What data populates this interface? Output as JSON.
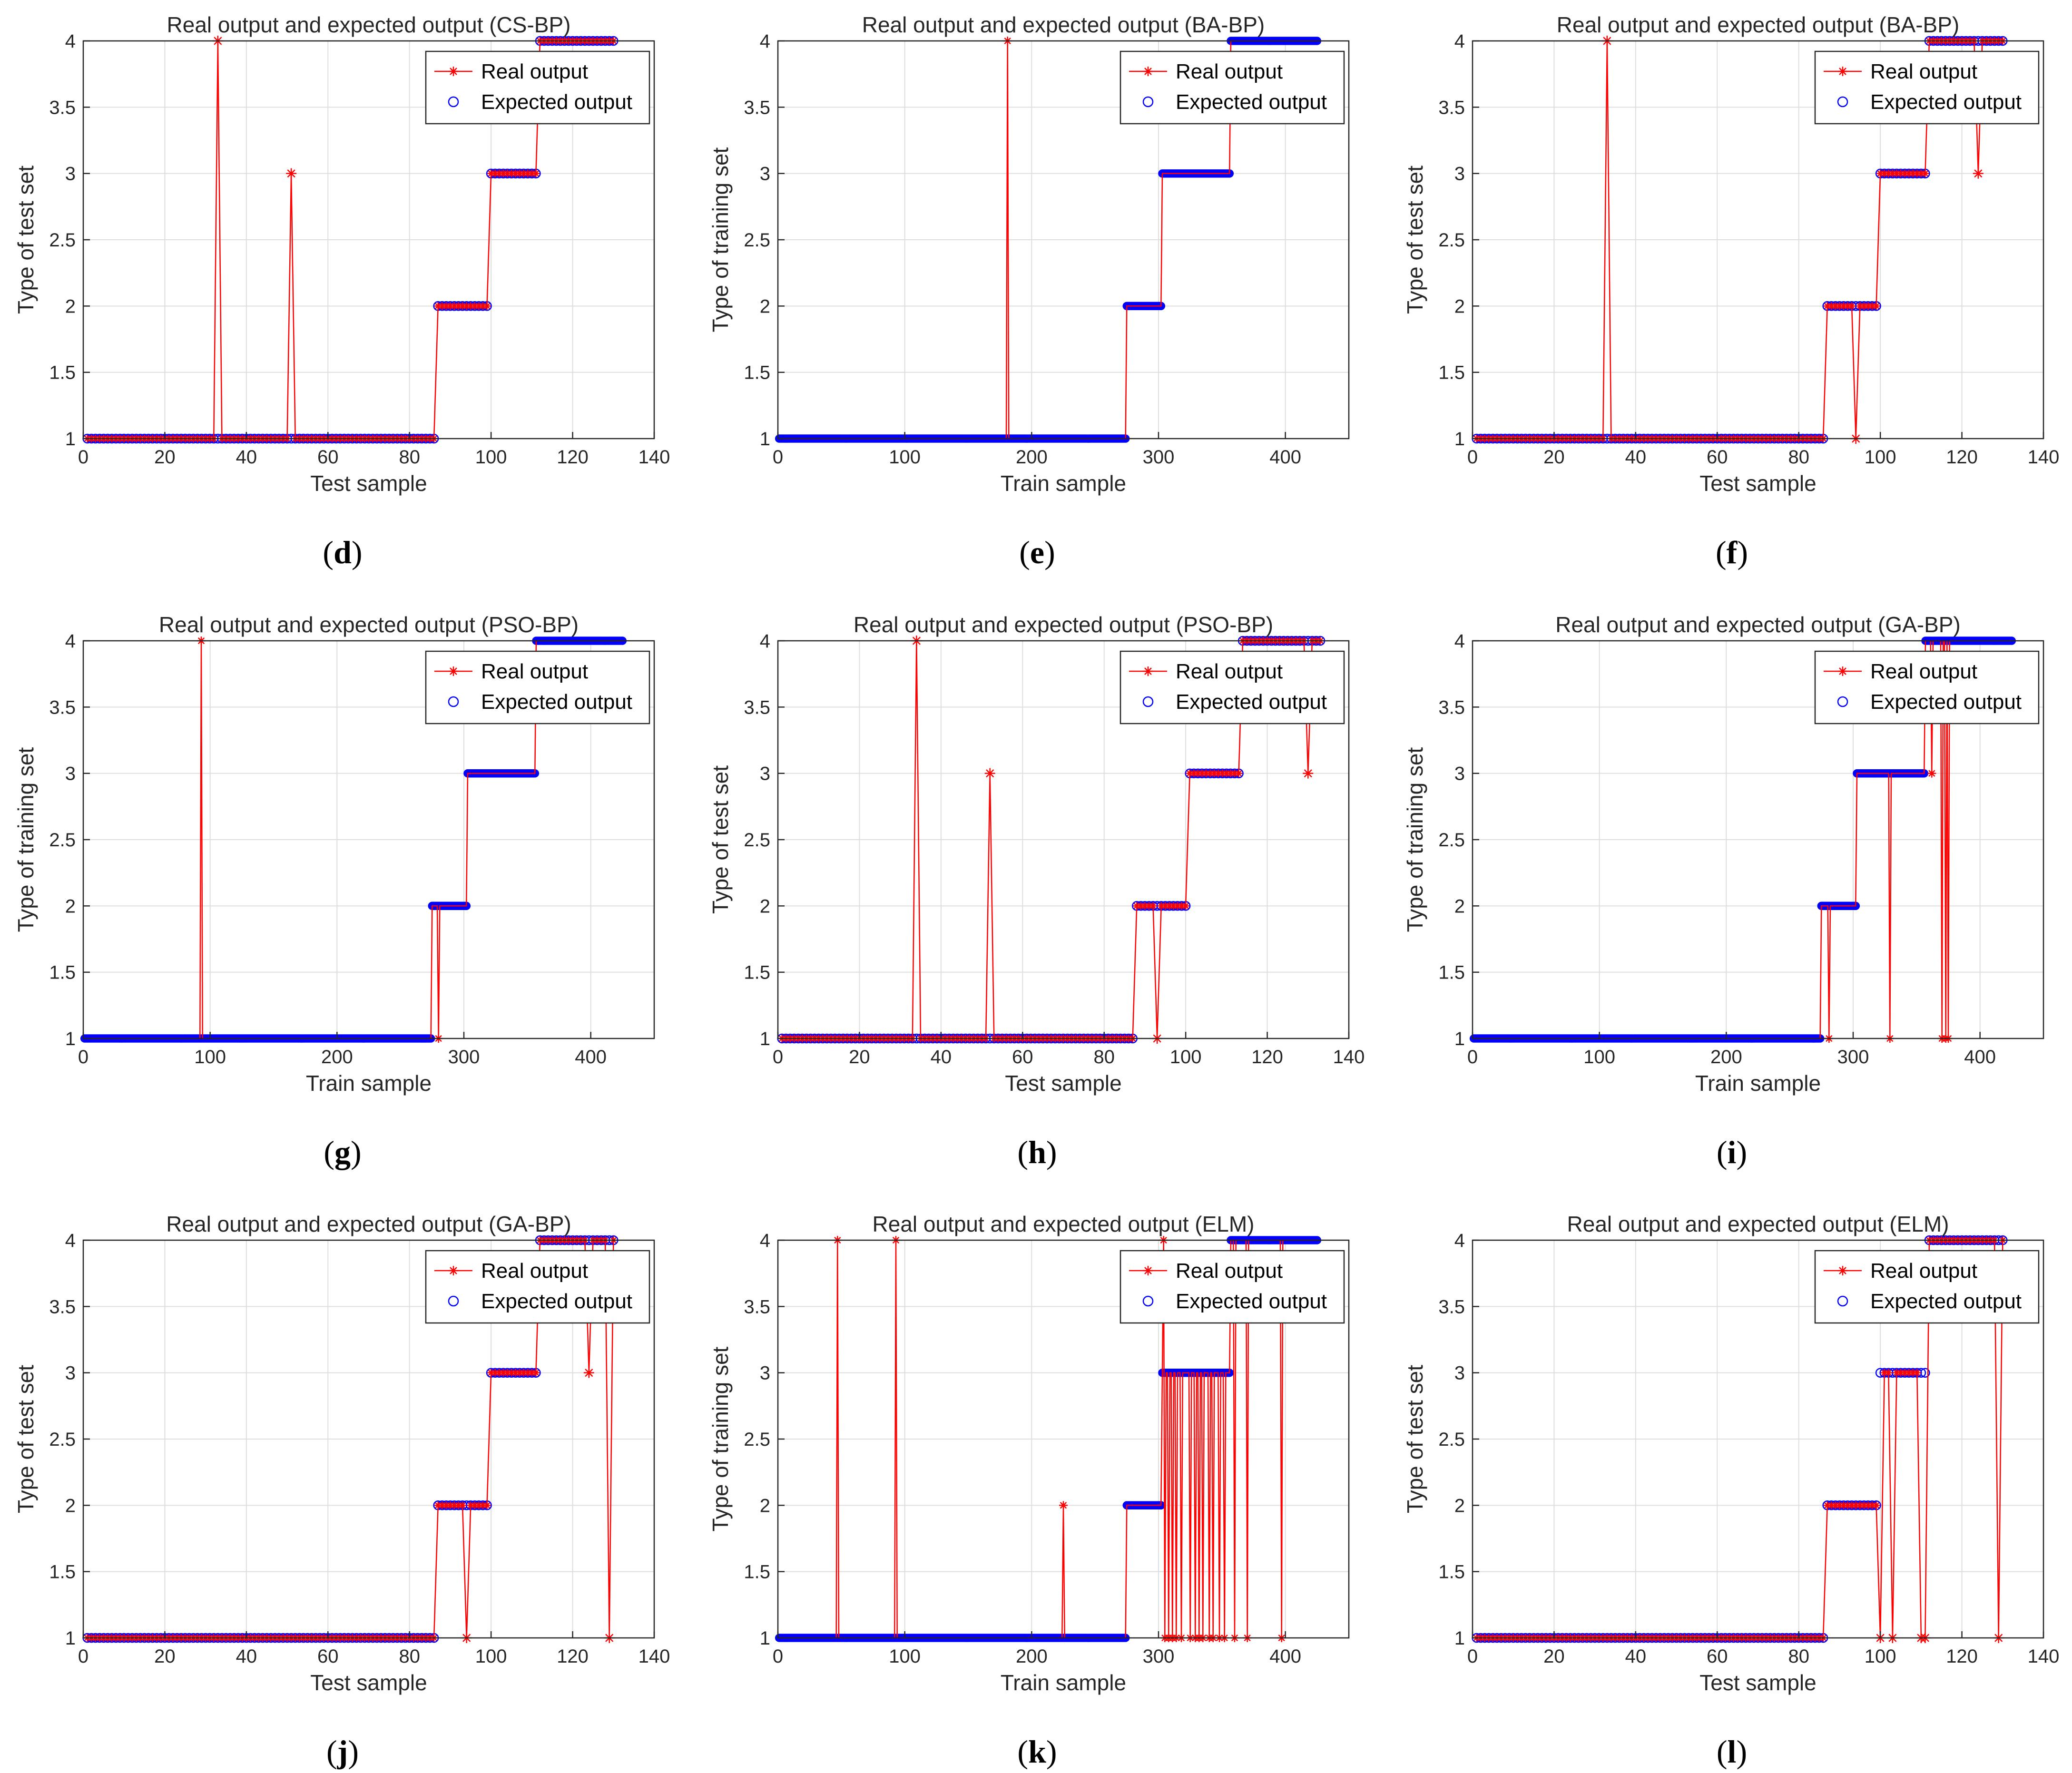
{
  "colors": {
    "real": "#ff0000",
    "expected": "#0000ff",
    "grid": "#dedede",
    "axis": "#262626"
  },
  "legend": {
    "real": "Real output",
    "expected": "Expected output"
  },
  "chart_data": [
    {
      "id": "d",
      "caption": "(d)",
      "type": "line",
      "title": "Real output and expected output (CS-BP)",
      "xlabel": "Test sample",
      "ylabel": "Type of test set",
      "xlim": [
        0,
        140
      ],
      "xticks": [
        0,
        20,
        40,
        60,
        80,
        100,
        120,
        140
      ],
      "ylim": [
        1,
        4
      ],
      "yticks": [
        "1",
        "1.5",
        "2",
        "2.5",
        "3",
        "3.5",
        "4"
      ],
      "legend_position": "top-right",
      "n": 130,
      "segments": [
        [
          1,
          86,
          1
        ],
        [
          87,
          99,
          2
        ],
        [
          100,
          111,
          3
        ],
        [
          112,
          130,
          4
        ]
      ],
      "errors": [
        [
          33,
          4
        ],
        [
          51,
          3
        ]
      ]
    },
    {
      "id": "e",
      "caption": "(e)",
      "type": "line",
      "title": "Real output and expected output (BA-BP)",
      "xlabel": "Train sample",
      "ylabel": "Type of training set",
      "xlim": [
        0,
        450
      ],
      "xticks": [
        0,
        100,
        200,
        300,
        400
      ],
      "ylim": [
        1,
        4
      ],
      "yticks": [
        "1",
        "1.5",
        "2",
        "2.5",
        "3",
        "3.5",
        "4"
      ],
      "legend_position": "top-right",
      "n": 425,
      "segments": [
        [
          1,
          274,
          1
        ],
        [
          275,
          302,
          2
        ],
        [
          303,
          356,
          3
        ],
        [
          357,
          425,
          4
        ]
      ],
      "errors": [
        [
          181,
          4
        ]
      ]
    },
    {
      "id": "f",
      "caption": "(f)",
      "type": "line",
      "title": "Real output and expected output (BA-BP)",
      "xlabel": "Test sample",
      "ylabel": "Type of test set",
      "xlim": [
        0,
        140
      ],
      "xticks": [
        0,
        20,
        40,
        60,
        80,
        100,
        120,
        140
      ],
      "ylim": [
        1,
        4
      ],
      "yticks": [
        "1",
        "1.5",
        "2",
        "2.5",
        "3",
        "3.5",
        "4"
      ],
      "legend_position": "top-right",
      "n": 130,
      "segments": [
        [
          1,
          86,
          1
        ],
        [
          87,
          99,
          2
        ],
        [
          100,
          111,
          3
        ],
        [
          112,
          130,
          4
        ]
      ],
      "errors": [
        [
          33,
          4
        ],
        [
          94,
          1
        ],
        [
          124,
          3
        ]
      ]
    },
    {
      "id": "g",
      "caption": "(g)",
      "type": "line",
      "title": "Real output and expected output (PSO-BP)",
      "xlabel": "Train sample",
      "ylabel": "Type of training set",
      "xlim": [
        0,
        450
      ],
      "xticks": [
        0,
        100,
        200,
        300,
        400
      ],
      "ylim": [
        1,
        4
      ],
      "yticks": [
        "1",
        "1.5",
        "2",
        "2.5",
        "3",
        "3.5",
        "4"
      ],
      "legend_position": "top-right",
      "n": 425,
      "segments": [
        [
          1,
          274,
          1
        ],
        [
          275,
          302,
          2
        ],
        [
          303,
          356,
          3
        ],
        [
          357,
          425,
          4
        ]
      ],
      "errors": [
        [
          93,
          4
        ],
        [
          280,
          1
        ]
      ]
    },
    {
      "id": "h",
      "caption": "(h)",
      "type": "line",
      "title": "Real output and expected output (PSO-BP)",
      "xlabel": "Test sample",
      "ylabel": "Type of test set",
      "xlim": [
        0,
        140
      ],
      "xticks": [
        0,
        20,
        40,
        60,
        80,
        100,
        120,
        140
      ],
      "ylim": [
        1,
        4
      ],
      "yticks": [
        "1",
        "1.5",
        "2",
        "2.5",
        "3",
        "3.5",
        "4"
      ],
      "legend_position": "top-right",
      "n": 133,
      "segments": [
        [
          1,
          87,
          1
        ],
        [
          88,
          100,
          2
        ],
        [
          101,
          113,
          3
        ],
        [
          114,
          133,
          4
        ]
      ],
      "errors": [
        [
          34,
          4
        ],
        [
          52,
          3
        ],
        [
          93,
          1
        ],
        [
          130,
          3
        ]
      ]
    },
    {
      "id": "i",
      "caption": "(i)",
      "type": "line",
      "title": "Real output and expected output (GA-BP)",
      "xlabel": "Train sample",
      "ylabel": "Type of training set",
      "xlim": [
        0,
        450
      ],
      "xticks": [
        0,
        100,
        200,
        300,
        400
      ],
      "ylim": [
        1,
        4
      ],
      "yticks": [
        "1",
        "1.5",
        "2",
        "2.5",
        "3",
        "3.5",
        "4"
      ],
      "legend_position": "top-right",
      "n": 425,
      "segments": [
        [
          1,
          274,
          1
        ],
        [
          275,
          302,
          2
        ],
        [
          303,
          356,
          3
        ],
        [
          357,
          425,
          4
        ]
      ],
      "errors": [
        [
          281,
          1
        ],
        [
          329,
          1
        ],
        [
          362,
          3
        ],
        [
          370,
          1
        ],
        [
          373,
          1
        ],
        [
          375,
          1
        ]
      ]
    },
    {
      "id": "j",
      "caption": "(j)",
      "type": "line",
      "title": "Real output and expected output (GA-BP)",
      "xlabel": "Test sample",
      "ylabel": "Type of test set",
      "xlim": [
        0,
        140
      ],
      "xticks": [
        0,
        20,
        40,
        60,
        80,
        100,
        120,
        140
      ],
      "ylim": [
        1,
        4
      ],
      "yticks": [
        "1",
        "1.5",
        "2",
        "2.5",
        "3",
        "3.5",
        "4"
      ],
      "legend_position": "top-right",
      "n": 130,
      "segments": [
        [
          1,
          86,
          1
        ],
        [
          87,
          99,
          2
        ],
        [
          100,
          111,
          3
        ],
        [
          112,
          130,
          4
        ]
      ],
      "errors": [
        [
          94,
          1
        ],
        [
          124,
          3
        ],
        [
          129,
          1
        ]
      ]
    },
    {
      "id": "k",
      "caption": "(k)",
      "type": "line",
      "title": "Real output and expected output (ELM)",
      "xlabel": "Train sample",
      "ylabel": "Type of training set",
      "xlim": [
        0,
        450
      ],
      "xticks": [
        0,
        100,
        200,
        300,
        400
      ],
      "ylim": [
        1,
        4
      ],
      "yticks": [
        "1",
        "1.5",
        "2",
        "2.5",
        "3",
        "3.5",
        "4"
      ],
      "legend_position": "top-right",
      "n": 425,
      "segments": [
        [
          1,
          274,
          1
        ],
        [
          275,
          302,
          2
        ],
        [
          303,
          356,
          3
        ],
        [
          357,
          425,
          4
        ]
      ],
      "errors": [
        [
          47,
          4
        ],
        [
          93,
          4
        ],
        [
          225,
          2
        ],
        [
          304,
          4
        ],
        [
          305,
          1
        ],
        [
          308,
          1
        ],
        [
          311,
          1
        ],
        [
          314,
          1
        ],
        [
          318,
          1
        ],
        [
          325,
          1
        ],
        [
          329,
          1
        ],
        [
          332,
          1
        ],
        [
          335,
          1
        ],
        [
          340,
          1
        ],
        [
          343,
          1
        ],
        [
          348,
          1
        ],
        [
          352,
          1
        ],
        [
          360,
          1
        ],
        [
          370,
          1
        ],
        [
          397,
          1
        ]
      ]
    },
    {
      "id": "l",
      "caption": "(l)",
      "type": "line",
      "title": "Real output and expected output (ELM)",
      "xlabel": "Test sample",
      "ylabel": "Type of test set",
      "xlim": [
        0,
        140
      ],
      "xticks": [
        0,
        20,
        40,
        60,
        80,
        100,
        120,
        140
      ],
      "ylim": [
        1,
        4
      ],
      "yticks": [
        "1",
        "1.5",
        "2",
        "2.5",
        "3",
        "3.5",
        "4"
      ],
      "legend_position": "top-right",
      "n": 130,
      "segments": [
        [
          1,
          86,
          1
        ],
        [
          87,
          99,
          2
        ],
        [
          100,
          111,
          3
        ],
        [
          112,
          130,
          4
        ]
      ],
      "errors": [
        [
          100,
          1
        ],
        [
          103,
          1
        ],
        [
          110,
          1
        ],
        [
          111,
          1
        ],
        [
          129,
          1
        ]
      ]
    }
  ]
}
